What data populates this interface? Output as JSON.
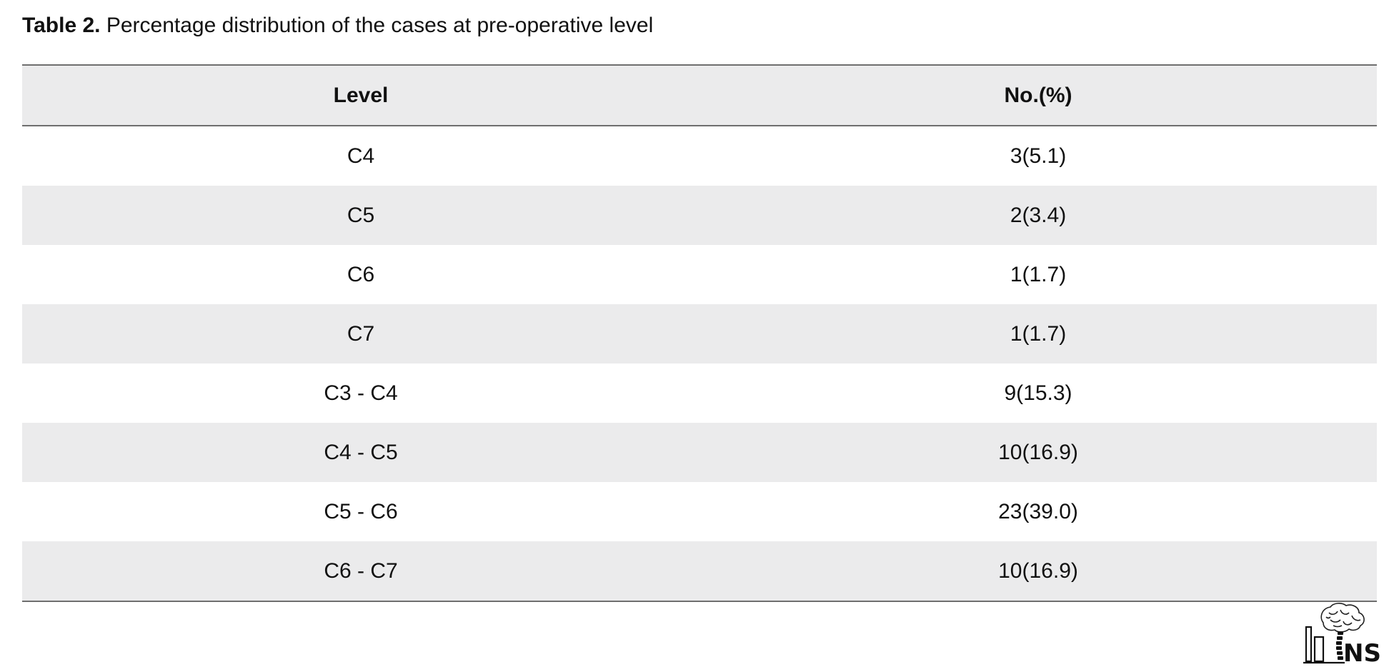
{
  "caption": {
    "label": "Table 2.",
    "text": " Percentage distribution of the cases at pre-operative level"
  },
  "table": {
    "headers": [
      "Level",
      "No.(%)"
    ],
    "rows": [
      [
        "C4",
        "3(5.1)"
      ],
      [
        "C5",
        "2(3.4)"
      ],
      [
        "C6",
        "1(1.7)"
      ],
      [
        "C7",
        "1(1.7)"
      ],
      [
        "C3 - C4",
        "9(15.3)"
      ],
      [
        "C4 - C5",
        "10(16.9)"
      ],
      [
        "C5 - C6",
        "23(39.0)"
      ],
      [
        "C6 - C7",
        "10(16.9)"
      ]
    ]
  },
  "logo": {
    "text": "NS",
    "icon": "brain-spine-logo"
  },
  "colors": {
    "row_shade": "#ebebec",
    "rule": "#6f6f6f",
    "text": "#111111"
  }
}
